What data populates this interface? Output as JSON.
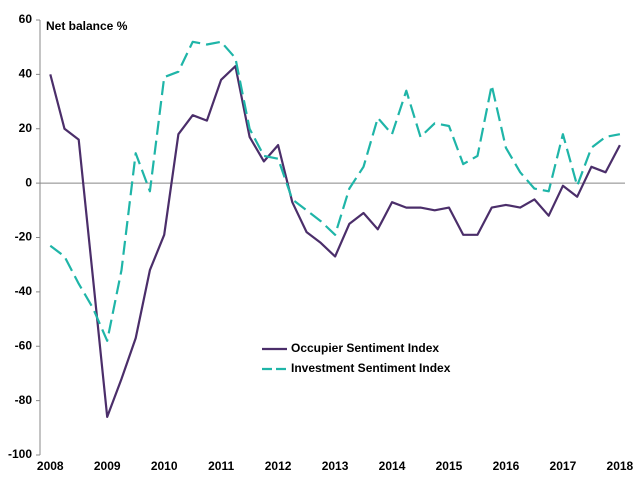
{
  "chart_data": {
    "type": "line",
    "y_label": "Net balance %",
    "x": [
      2008,
      2008.25,
      2008.5,
      2008.75,
      2009,
      2009.25,
      2009.5,
      2009.75,
      2010,
      2010.25,
      2010.5,
      2010.75,
      2011,
      2011.25,
      2011.5,
      2011.75,
      2012,
      2012.25,
      2012.5,
      2012.75,
      2013,
      2013.25,
      2013.5,
      2013.75,
      2014,
      2014.25,
      2014.5,
      2014.75,
      2015,
      2015.25,
      2015.5,
      2015.75,
      2016,
      2016.25,
      2016.5,
      2016.75,
      2017,
      2017.25,
      2017.5,
      2017.75,
      2018
    ],
    "series": [
      {
        "name": "Occupier Sentiment Index",
        "color": "#4b2e6a",
        "dashed": false,
        "values": [
          40,
          20,
          16,
          -35,
          -86,
          -72,
          -57,
          -32,
          -19,
          18,
          25,
          23,
          38,
          43,
          17,
          8,
          14,
          -7,
          -18,
          -22,
          -27,
          -15,
          -11,
          -17,
          -7,
          -9,
          -9,
          -10,
          -9,
          -19,
          -19,
          -9,
          -8,
          -9,
          -6,
          -12,
          -1,
          -5,
          6,
          4,
          14
        ]
      },
      {
        "name": "Investment Sentiment Index",
        "color": "#1fb5a8",
        "dashed": true,
        "values": [
          -23,
          -27,
          -37,
          -46,
          -58,
          -32,
          11,
          -3,
          39,
          41,
          52,
          51,
          52,
          46,
          20,
          10,
          9,
          -6,
          -10,
          -14,
          -19,
          -2,
          6,
          24,
          18,
          34,
          17,
          22,
          21,
          7,
          10,
          36,
          13,
          4,
          -2,
          -3,
          18,
          -1,
          13,
          17,
          18
        ]
      }
    ],
    "xlim": [
      2007.82,
      2018.09
    ],
    "xticks": [
      2008,
      2009,
      2010,
      2011,
      2012,
      2013,
      2014,
      2015,
      2016,
      2017,
      2018
    ],
    "ylim": [
      -100,
      60
    ],
    "yticks": [
      -100,
      -80,
      -60,
      -40,
      -20,
      0,
      20,
      40,
      60
    ],
    "legend": "center"
  }
}
